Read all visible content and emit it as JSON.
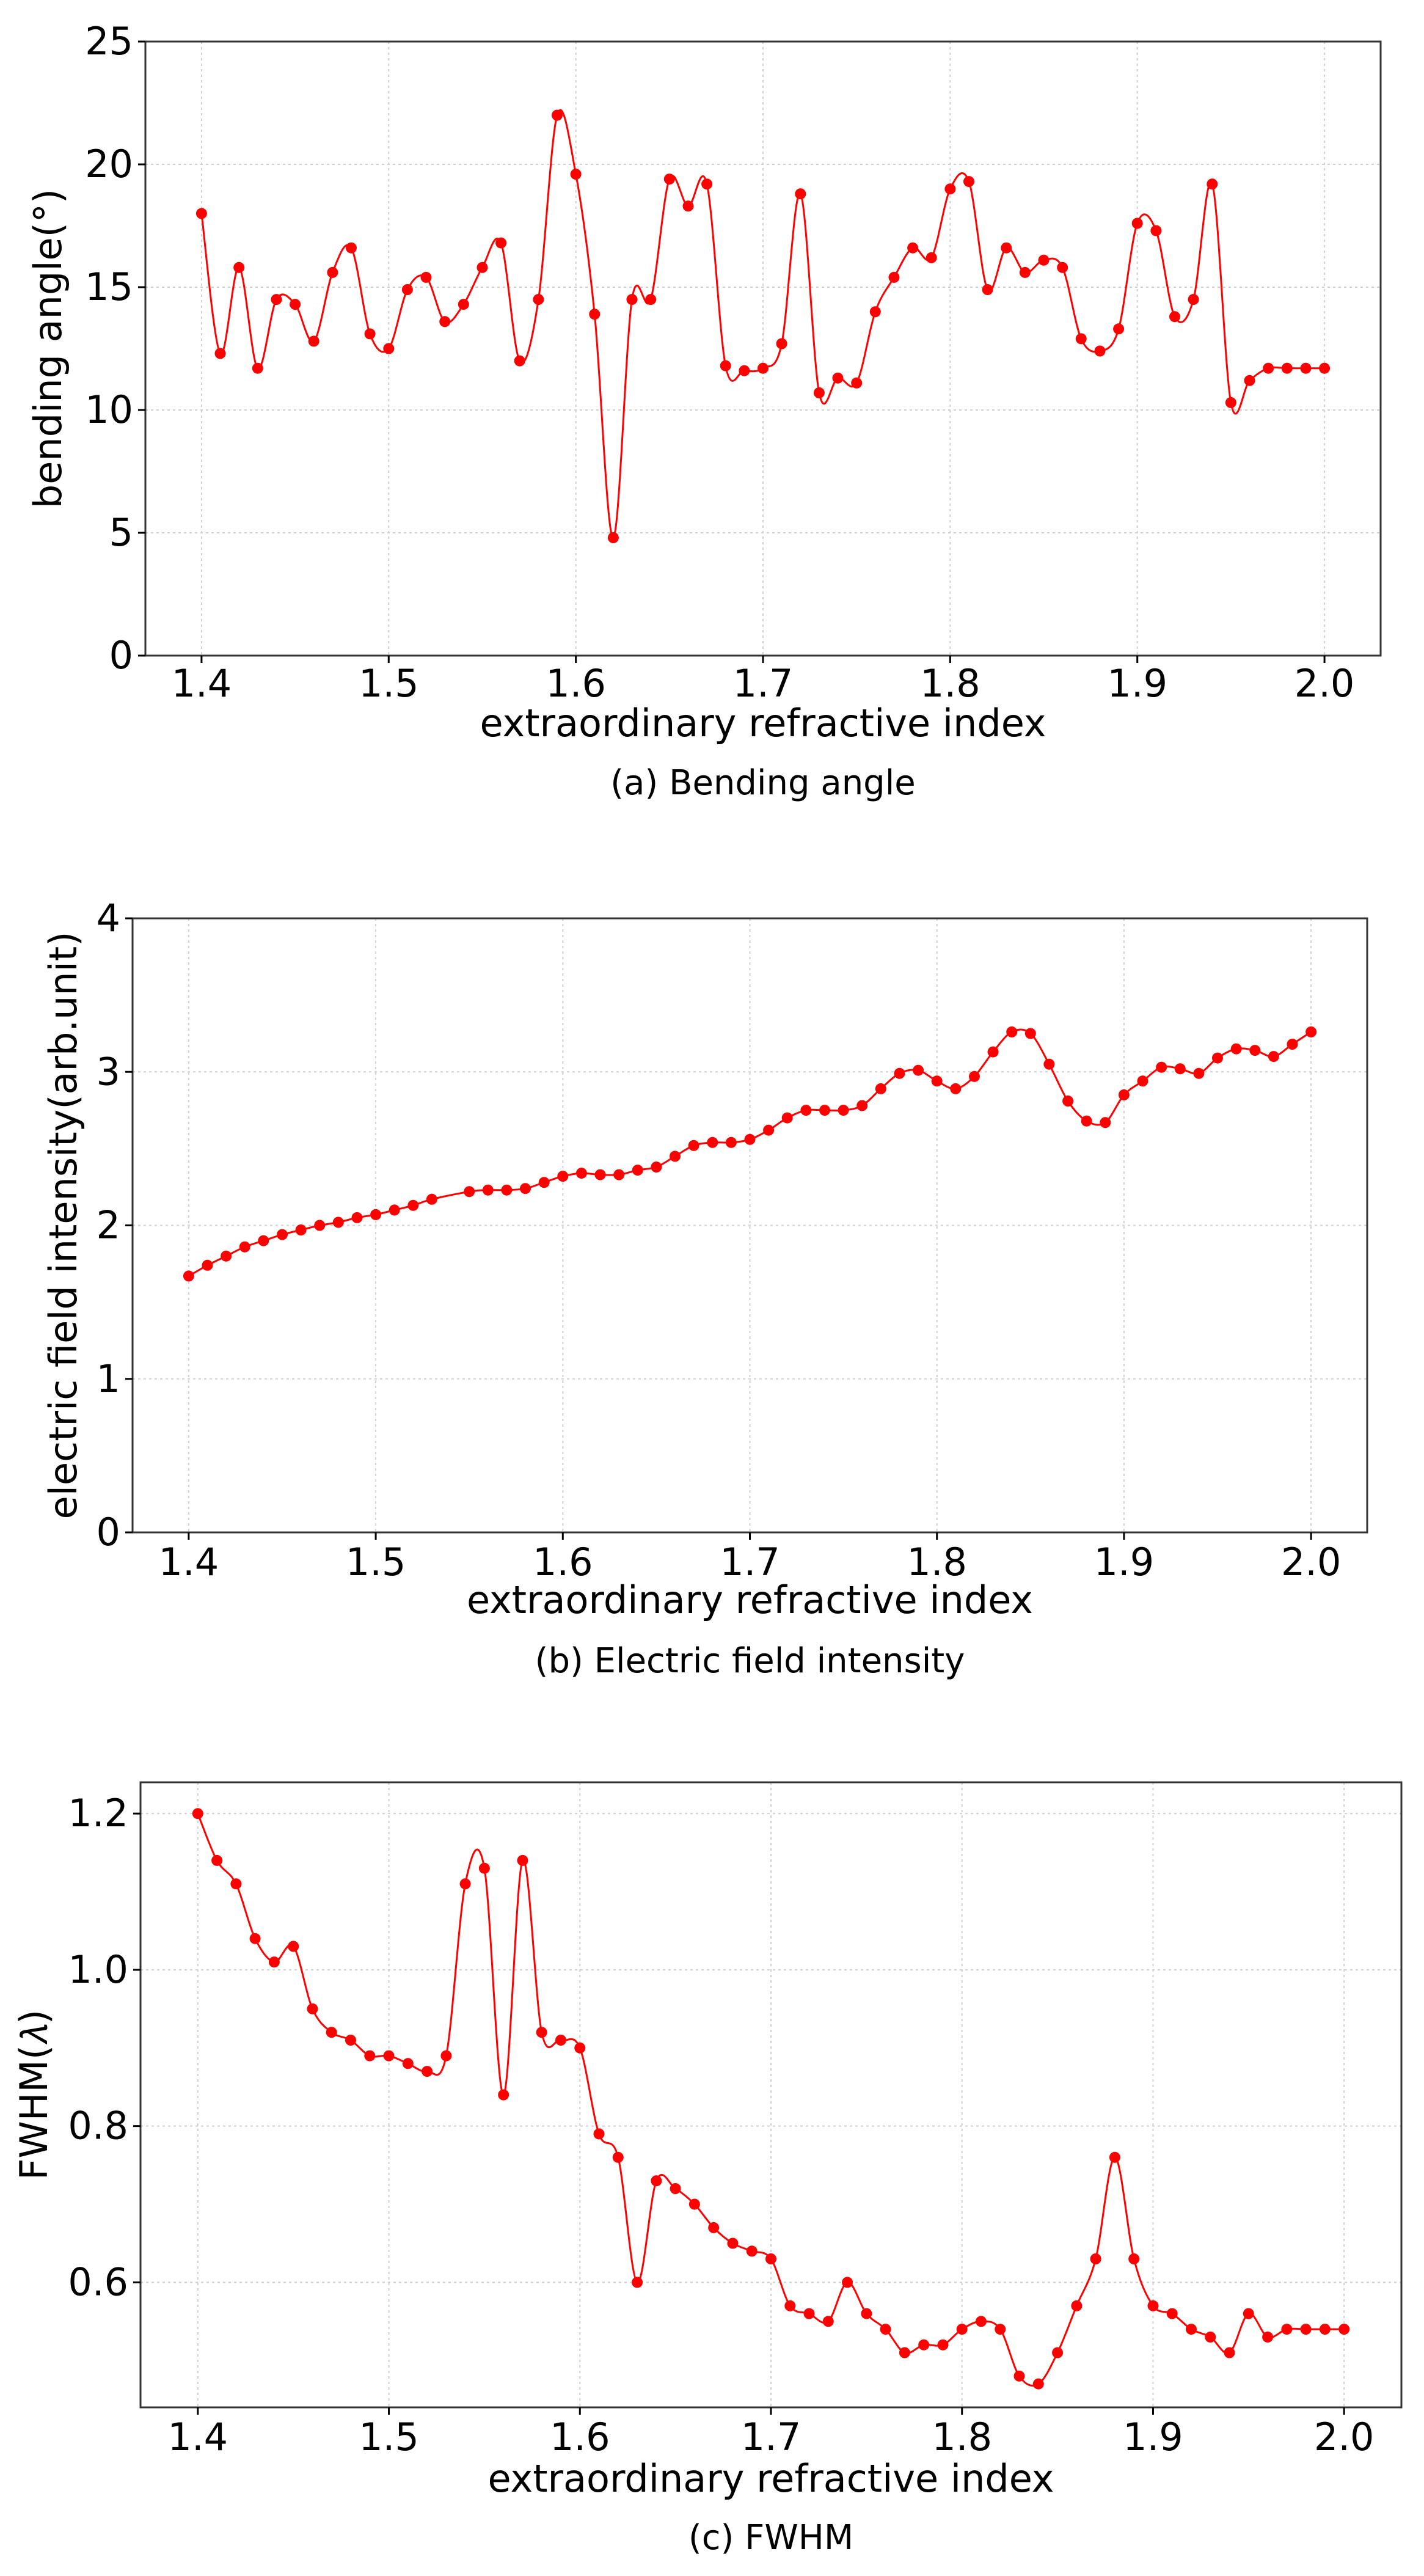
{
  "colors": {
    "series": "#ff0000",
    "frame": "#333333",
    "grid": "#d0d0d0"
  },
  "chart_data": [
    {
      "type": "line",
      "caption": "(a) Bending angle",
      "title": "",
      "xlabel": "extraordinary refractive index",
      "ylabel": "bending angle(°)",
      "xlim": [
        1.37,
        2.03
      ],
      "ylim": [
        0,
        25
      ],
      "xticks": [
        1.4,
        1.5,
        1.6,
        1.7,
        1.8,
        1.9,
        2.0
      ],
      "xtick_labels": [
        "1.4",
        "1.5",
        "1.6",
        "1.7",
        "1.8",
        "1.9",
        "2.0"
      ],
      "yticks": [
        0,
        5,
        10,
        15,
        20,
        25
      ],
      "ytick_labels": [
        "0",
        "5",
        "10",
        "15",
        "20",
        "25"
      ],
      "grid": true,
      "marker": "circle",
      "smooth": true,
      "series": [
        {
          "name": "bending angle",
          "x": [
            1.4,
            1.41,
            1.42,
            1.43,
            1.44,
            1.45,
            1.46,
            1.47,
            1.48,
            1.49,
            1.5,
            1.51,
            1.52,
            1.53,
            1.54,
            1.55,
            1.56,
            1.57,
            1.58,
            1.59,
            1.6,
            1.61,
            1.62,
            1.63,
            1.64,
            1.65,
            1.66,
            1.67,
            1.68,
            1.69,
            1.7,
            1.71,
            1.72,
            1.73,
            1.74,
            1.75,
            1.76,
            1.77,
            1.78,
            1.79,
            1.8,
            1.81,
            1.82,
            1.83,
            1.84,
            1.85,
            1.86,
            1.87,
            1.88,
            1.89,
            1.9,
            1.91,
            1.92,
            1.93,
            1.94,
            1.95,
            1.96,
            1.97,
            1.98,
            1.99,
            2.0
          ],
          "values": [
            18.0,
            12.3,
            15.8,
            11.7,
            14.5,
            14.3,
            12.8,
            15.6,
            16.6,
            13.1,
            12.5,
            14.9,
            15.4,
            13.6,
            14.3,
            15.8,
            16.8,
            12.0,
            14.5,
            22.0,
            19.6,
            13.9,
            4.8,
            14.5,
            14.5,
            19.4,
            18.3,
            19.2,
            11.8,
            11.6,
            11.7,
            12.7,
            18.8,
            10.7,
            11.3,
            11.1,
            14.0,
            15.4,
            16.6,
            16.2,
            19.0,
            19.3,
            14.9,
            16.6,
            15.6,
            16.1,
            15.8,
            12.9,
            12.4,
            13.3,
            17.6,
            17.3,
            13.8,
            14.5,
            19.2,
            10.3,
            11.2,
            11.7,
            11.7,
            11.7,
            11.7
          ]
        }
      ]
    },
    {
      "type": "line",
      "caption": "(b) Electric field intensity",
      "title": "",
      "xlabel": "extraordinary refractive index",
      "ylabel": "electric field intensity(arb.unit)",
      "xlim": [
        1.37,
        2.03
      ],
      "ylim": [
        0,
        4
      ],
      "xticks": [
        1.4,
        1.5,
        1.6,
        1.7,
        1.8,
        1.9,
        2.0
      ],
      "xtick_labels": [
        "1.4",
        "1.5",
        "1.6",
        "1.7",
        "1.8",
        "1.9",
        "2.0"
      ],
      "yticks": [
        0,
        1,
        2,
        3,
        4
      ],
      "ytick_labels": [
        "0",
        "1",
        "2",
        "3",
        "4"
      ],
      "grid": true,
      "marker": "circle",
      "smooth": true,
      "series": [
        {
          "name": "electric field intensity",
          "x": [
            1.4,
            1.41,
            1.42,
            1.43,
            1.44,
            1.45,
            1.46,
            1.47,
            1.48,
            1.49,
            1.5,
            1.51,
            1.52,
            1.53,
            1.55,
            1.56,
            1.57,
            1.58,
            1.59,
            1.6,
            1.61,
            1.62,
            1.63,
            1.64,
            1.65,
            1.66,
            1.67,
            1.68,
            1.69,
            1.7,
            1.71,
            1.72,
            1.73,
            1.74,
            1.75,
            1.76,
            1.77,
            1.78,
            1.79,
            1.8,
            1.81,
            1.82,
            1.83,
            1.84,
            1.85,
            1.86,
            1.87,
            1.88,
            1.89,
            1.9,
            1.91,
            1.92,
            1.93,
            1.94,
            1.95,
            1.96,
            1.97,
            1.98,
            1.99,
            2.0
          ],
          "values": [
            1.67,
            1.74,
            1.8,
            1.86,
            1.9,
            1.94,
            1.97,
            2.0,
            2.02,
            2.05,
            2.07,
            2.1,
            2.13,
            2.17,
            2.22,
            2.23,
            2.23,
            2.24,
            2.28,
            2.32,
            2.34,
            2.33,
            2.33,
            2.36,
            2.38,
            2.45,
            2.52,
            2.54,
            2.54,
            2.56,
            2.62,
            2.7,
            2.75,
            2.75,
            2.75,
            2.78,
            2.89,
            2.99,
            3.01,
            2.94,
            2.89,
            2.97,
            3.13,
            3.26,
            3.25,
            3.05,
            2.81,
            2.68,
            2.67,
            2.85,
            2.94,
            3.03,
            3.02,
            2.99,
            3.09,
            3.15,
            3.14,
            3.1,
            3.18,
            3.26
          ]
        }
      ]
    },
    {
      "type": "line",
      "caption": "(c) FWHM",
      "title": "",
      "xlabel": "extraordinary refractive index",
      "ylabel": "FWHM(𝜆)",
      "xlim": [
        1.37,
        2.03
      ],
      "ylim": [
        0.44,
        1.24
      ],
      "xticks": [
        1.4,
        1.5,
        1.6,
        1.7,
        1.8,
        1.9,
        2.0
      ],
      "xtick_labels": [
        "1.4",
        "1.5",
        "1.6",
        "1.7",
        "1.8",
        "1.9",
        "2.0"
      ],
      "yticks": [
        0.6,
        0.8,
        1.0,
        1.2
      ],
      "ytick_labels": [
        "0.6",
        "0.8",
        "1.0",
        "1.2"
      ],
      "grid": true,
      "marker": "circle",
      "smooth": true,
      "series": [
        {
          "name": "FWHM",
          "x": [
            1.4,
            1.41,
            1.42,
            1.43,
            1.44,
            1.45,
            1.46,
            1.47,
            1.48,
            1.49,
            1.5,
            1.51,
            1.52,
            1.53,
            1.54,
            1.55,
            1.56,
            1.57,
            1.58,
            1.59,
            1.6,
            1.61,
            1.62,
            1.63,
            1.64,
            1.65,
            1.66,
            1.67,
            1.68,
            1.69,
            1.7,
            1.71,
            1.72,
            1.73,
            1.74,
            1.75,
            1.76,
            1.77,
            1.78,
            1.79,
            1.8,
            1.81,
            1.82,
            1.83,
            1.84,
            1.85,
            1.86,
            1.87,
            1.88,
            1.89,
            1.9,
            1.91,
            1.92,
            1.93,
            1.94,
            1.95,
            1.96,
            1.97,
            1.98,
            1.99,
            2.0
          ],
          "values": [
            1.2,
            1.14,
            1.11,
            1.04,
            1.01,
            1.03,
            0.95,
            0.92,
            0.91,
            0.89,
            0.89,
            0.88,
            0.87,
            0.89,
            1.11,
            1.13,
            0.84,
            1.14,
            0.92,
            0.91,
            0.9,
            0.79,
            0.76,
            0.6,
            0.73,
            0.72,
            0.7,
            0.67,
            0.65,
            0.64,
            0.63,
            0.57,
            0.56,
            0.55,
            0.6,
            0.56,
            0.54,
            0.51,
            0.52,
            0.52,
            0.54,
            0.55,
            0.54,
            0.48,
            0.47,
            0.51,
            0.57,
            0.63,
            0.76,
            0.63,
            0.57,
            0.56,
            0.54,
            0.53,
            0.51,
            0.56,
            0.53,
            0.54,
            0.54,
            0.54,
            0.54
          ]
        }
      ]
    }
  ]
}
